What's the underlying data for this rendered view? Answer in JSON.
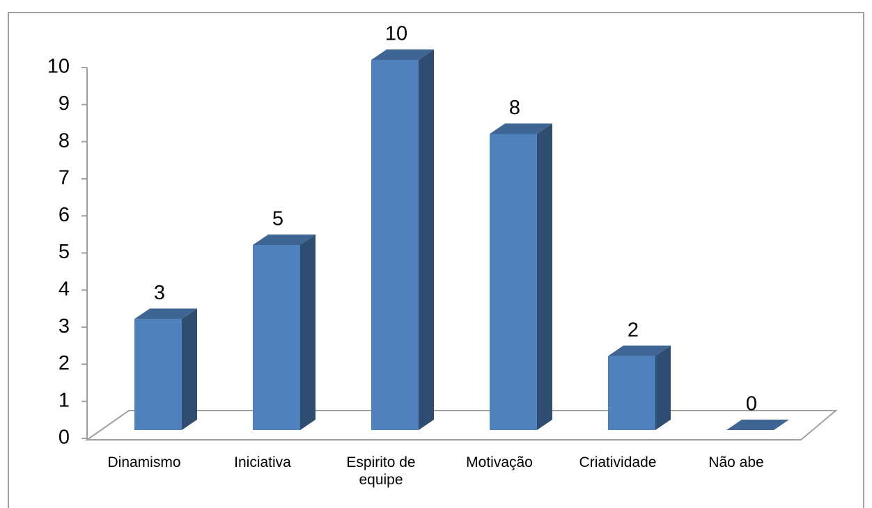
{
  "chart_data": {
    "type": "bar3d",
    "categories": [
      "Dinamismo",
      "Iniciativa",
      "Espirito de equipe",
      "Motivação",
      "Criatividade",
      "Não abe"
    ],
    "values": [
      3,
      5,
      10,
      8,
      2,
      0
    ],
    "color": "#4f81bd",
    "ylim": [
      0,
      10
    ],
    "yticks": [
      0,
      1,
      2,
      3,
      4,
      5,
      6,
      7,
      8,
      9,
      10
    ]
  }
}
